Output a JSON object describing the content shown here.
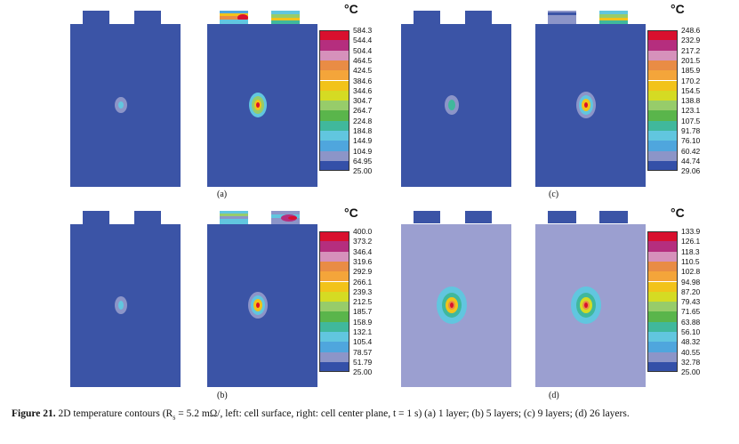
{
  "figure": {
    "panels": [
      {
        "label": "(a)",
        "unit": "°C",
        "legend_colors": [
          "#d9102e",
          "#b52e7e",
          "#d691bb",
          "#e98c45",
          "#f4a53a",
          "#f2c31a",
          "#d5db23",
          "#97cc6a",
          "#5ab54b",
          "#40b89c",
          "#61c6df",
          "#4fa6dd",
          "#8c95c8",
          "#3450a8"
        ],
        "legend_ticks": [
          "584.3",
          "544.4",
          "504.4",
          "464.5",
          "424.5",
          "384.6",
          "344.6",
          "304.7",
          "264.7",
          "224.8",
          "184.8",
          "144.9",
          "104.9",
          "64.95",
          "25.00"
        ],
        "surface_bg": "#3b54a6",
        "center_bg": "#3b54a6"
      },
      {
        "label": "(c)",
        "unit": "°C",
        "legend_colors": [
          "#d9102e",
          "#b52e7e",
          "#d691bb",
          "#e98c45",
          "#f4a53a",
          "#f2c31a",
          "#d5db23",
          "#97cc6a",
          "#5ab54b",
          "#40b89c",
          "#61c6df",
          "#4fa6dd",
          "#8c95c8",
          "#3450a8"
        ],
        "legend_ticks": [
          "248.6",
          "232.9",
          "217.2",
          "201.5",
          "185.9",
          "170.2",
          "154.5",
          "138.8",
          "123.1",
          "107.5",
          "91.78",
          "76.10",
          "60.42",
          "44.74",
          "29.06"
        ],
        "surface_bg": "#3b54a6",
        "center_bg": "#3b54a6"
      },
      {
        "label": "(b)",
        "unit": "°C",
        "legend_colors": [
          "#d9102e",
          "#b52e7e",
          "#d691bb",
          "#e98c45",
          "#f4a53a",
          "#f2c31a",
          "#d5db23",
          "#97cc6a",
          "#5ab54b",
          "#40b89c",
          "#61c6df",
          "#4fa6dd",
          "#8c95c8",
          "#3450a8"
        ],
        "legend_ticks": [
          "400.0",
          "373.2",
          "346.4",
          "319.6",
          "292.9",
          "266.1",
          "239.3",
          "212.5",
          "185.7",
          "158.9",
          "132.1",
          "105.4",
          "78.57",
          "51.79",
          "25.00"
        ],
        "surface_bg": "#3b54a6",
        "center_bg": "#3b54a6"
      },
      {
        "label": "(d)",
        "unit": "°C",
        "legend_colors": [
          "#d9102e",
          "#b52e7e",
          "#d691bb",
          "#e98c45",
          "#f4a53a",
          "#f2c31a",
          "#d5db23",
          "#97cc6a",
          "#5ab54b",
          "#40b89c",
          "#61c6df",
          "#4fa6dd",
          "#8c95c8",
          "#3450a8"
        ],
        "legend_ticks": [
          "133.9",
          "126.1",
          "118.3",
          "110.5",
          "102.8",
          "94.98",
          "87.20",
          "79.43",
          "71.65",
          "63.88",
          "56.10",
          "48.32",
          "40.55",
          "32.78",
          "25.00"
        ],
        "surface_bg": "#9b9fd0",
        "center_bg": "#9b9fd0"
      }
    ],
    "caption": {
      "label": "Figure 21.",
      "pre": "  2D temperature contours (R",
      "sub": "s",
      "post": " = 5.2 mΩ/, left: cell surface, right: cell center plane, t = 1 s) (a) 1 layer; (b) 5 layers; (c) 9 layers; (d) 26 layers."
    }
  }
}
